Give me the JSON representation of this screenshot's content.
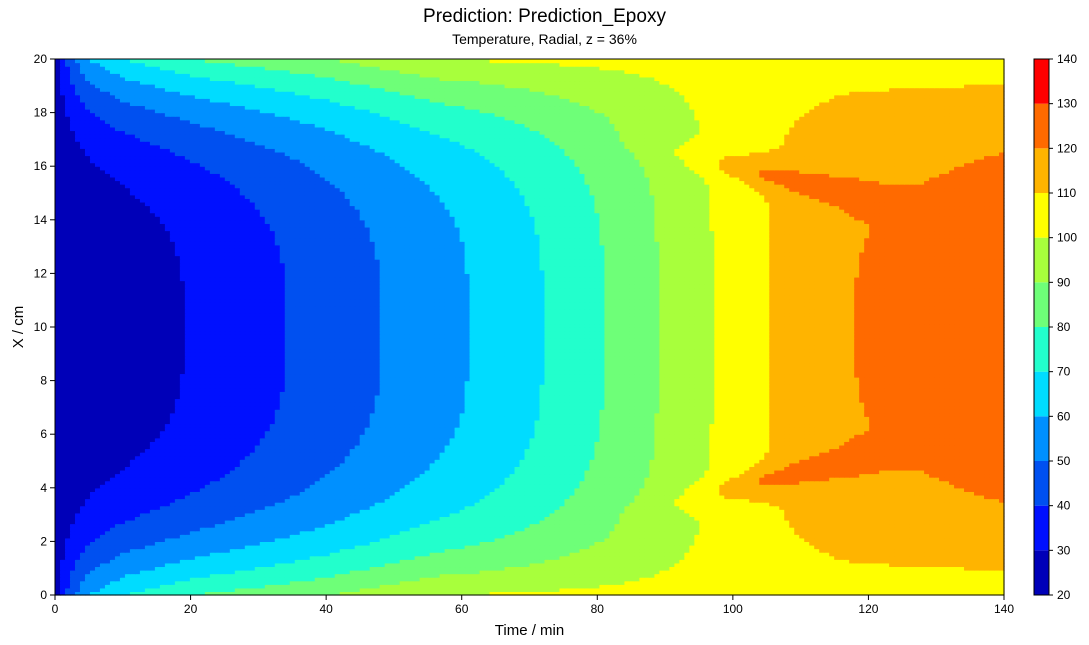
{
  "chart_data": {
    "type": "contour",
    "title": "Prediction: Prediction_Epoxy",
    "subtitle": "Temperature, Radial, z = 36%",
    "xlabel": "Time / min",
    "ylabel": "X / cm",
    "xlim": [
      0,
      140
    ],
    "ylim": [
      0,
      20
    ],
    "xticks": [
      "0",
      "20",
      "40",
      "60",
      "80",
      "100",
      "120",
      "140"
    ],
    "yticks": [
      "0",
      "2",
      "4",
      "6",
      "8",
      "10",
      "12",
      "14",
      "16",
      "18",
      "20"
    ],
    "levels": [
      20,
      30,
      40,
      50,
      60,
      70,
      80,
      90,
      100,
      110,
      120,
      130,
      140
    ],
    "colorbar_ticks": [
      "20",
      "30",
      "40",
      "50",
      "60",
      "70",
      "80",
      "90",
      "100",
      "110",
      "120",
      "130",
      "140"
    ],
    "colors": [
      "#0000b8",
      "#0010ff",
      "#0050f0",
      "#0090ff",
      "#00dcff",
      "#22ffcc",
      "#6eff78",
      "#a8ff3c",
      "#ffff00",
      "#ffb400",
      "#ff6a00",
      "#ff0000"
    ],
    "level_boundaries": [
      {
        "level": 30,
        "x_at_edge": 0.5,
        "x_at_center": 19
      },
      {
        "level": 40,
        "x_at_edge": 1.5,
        "x_at_center": 34
      },
      {
        "level": 50,
        "x_at_edge": 3,
        "x_at_center": 48
      },
      {
        "level": 60,
        "x_at_edge": 5,
        "x_at_center": 61
      },
      {
        "level": 70,
        "x_at_edge": 10,
        "x_at_center": 72
      },
      {
        "level": 80,
        "x_at_edge": 20,
        "x_at_center": 81
      },
      {
        "level": 90,
        "x_at_edge": 40,
        "x_at_center": 89
      },
      {
        "level": 100,
        "x_at_edge": 56,
        "x_at_center": 97
      },
      {
        "level": 110,
        "x_at_edge": 140,
        "x_at_center": 105
      },
      {
        "level": 120,
        "x_at_edge": 140,
        "x_at_center": 118
      }
    ],
    "hot_spots": [
      {
        "level": 130,
        "x": [
          92,
          122
        ],
        "y_center": 4.4
      },
      {
        "level": 130,
        "x": [
          92,
          122
        ],
        "y_center": 15.6
      }
    ],
    "colorbar_placement": "right"
  }
}
